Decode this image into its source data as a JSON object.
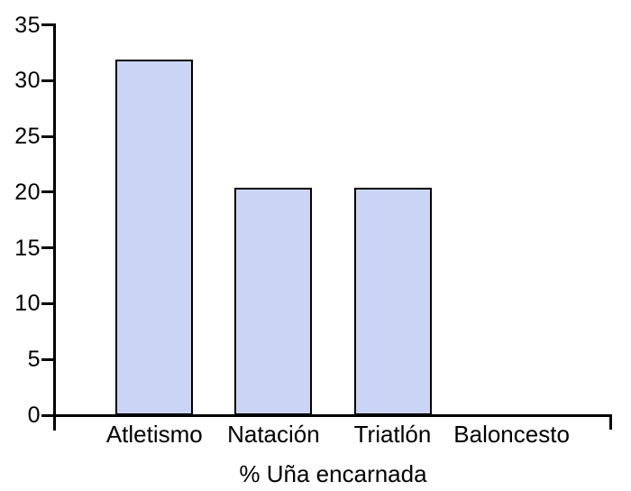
{
  "chart_data": {
    "type": "bar",
    "categories": [
      "Atletismo",
      "Natación",
      "Triatlón",
      "Baloncesto"
    ],
    "values": [
      31.9,
      20.4,
      20.4,
      0
    ],
    "title": "",
    "xlabel": "% Uña encarnada",
    "ylabel": "",
    "ylim": [
      0,
      35
    ],
    "yticks": [
      0,
      5,
      10,
      15,
      20,
      25,
      30,
      35
    ],
    "grid": false,
    "legend": false,
    "colors": {
      "bar_fill": "#cad5f6",
      "bar_border": "#000000",
      "axis": "#000000",
      "text": "#000000",
      "background": "#ffffff"
    }
  }
}
